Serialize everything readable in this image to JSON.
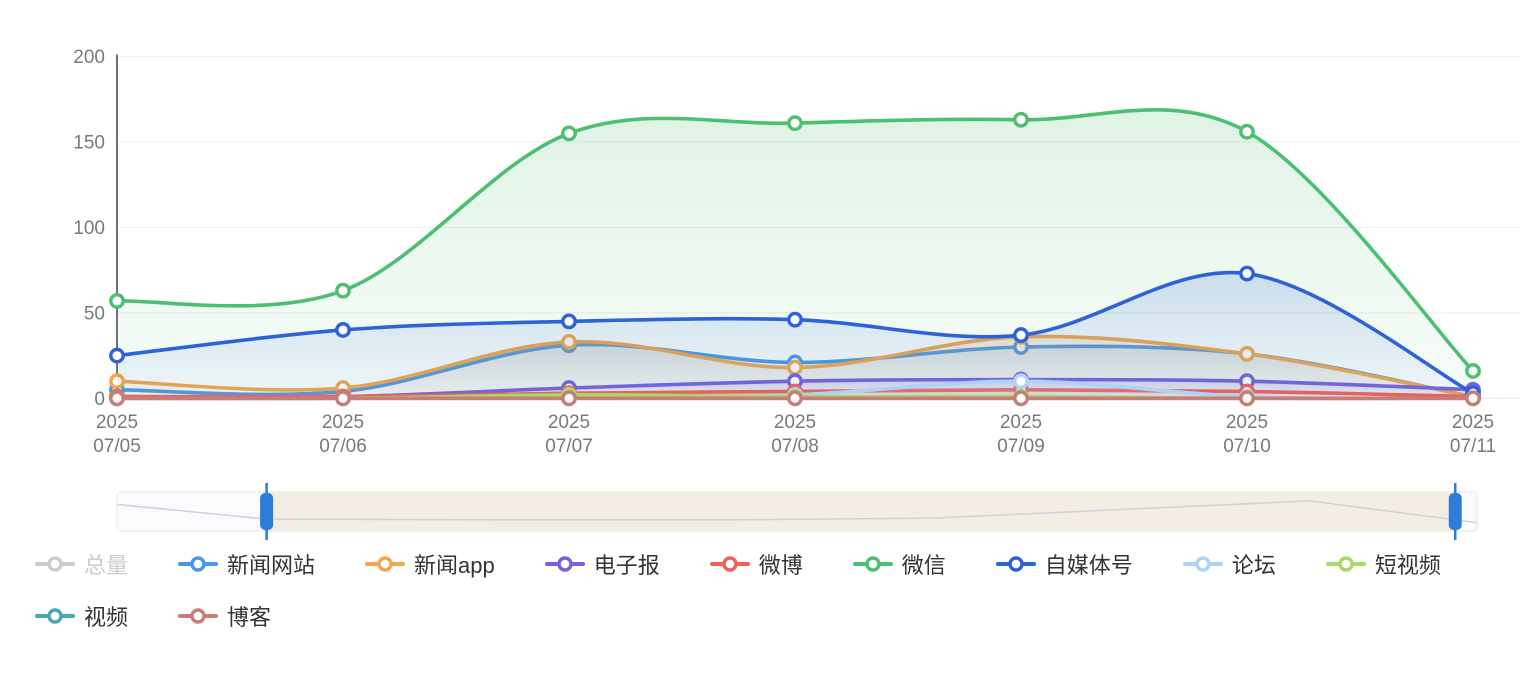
{
  "chart_data": {
    "type": "line",
    "title": "",
    "x_axis": {
      "year_line": "2025",
      "dates": [
        "07/05",
        "07/06",
        "07/07",
        "07/08",
        "07/09",
        "07/10",
        "07/11"
      ]
    },
    "y_axis": {
      "min": 0,
      "max": 200,
      "ticks": [
        0,
        50,
        100,
        150,
        200
      ]
    },
    "grid": true,
    "legend_position": "bottom-left",
    "series": [
      {
        "name": "总量",
        "color": "#c9c9c9",
        "selected": false,
        "values": []
      },
      {
        "name": "新闻网站",
        "color": "#4a97e8",
        "selected": true,
        "values": [
          5,
          4,
          31,
          21,
          30,
          26,
          1
        ]
      },
      {
        "name": "新闻app",
        "color": "#f6a54c",
        "selected": true,
        "values": [
          10,
          6,
          33,
          18,
          36,
          26,
          1
        ]
      },
      {
        "name": "电子报",
        "color": "#7a5fe0",
        "selected": true,
        "values": [
          1,
          1,
          6,
          10,
          11,
          10,
          5
        ]
      },
      {
        "name": "微博",
        "color": "#f2605a",
        "selected": true,
        "values": [
          1,
          1,
          3,
          4,
          5,
          4,
          1
        ]
      },
      {
        "name": "微信",
        "color": "#4dbf70",
        "selected": true,
        "values": [
          57,
          63,
          155,
          161,
          163,
          156,
          16
        ]
      },
      {
        "name": "自媒体号",
        "color": "#2d63d8",
        "selected": true,
        "values": [
          25,
          40,
          45,
          46,
          37,
          73,
          3
        ]
      },
      {
        "name": "论坛",
        "color": "#aed2f6",
        "selected": true,
        "values": [
          0,
          0,
          1,
          2,
          10,
          1,
          0
        ]
      },
      {
        "name": "短视频",
        "color": "#a6d966",
        "selected": true,
        "values": [
          0,
          0,
          2,
          1,
          1,
          0,
          0
        ]
      },
      {
        "name": "视频",
        "color": "#4ba7b0",
        "selected": true,
        "values": [
          0,
          0,
          0,
          0,
          0,
          0,
          0
        ]
      },
      {
        "name": "博客",
        "color": "#c97d78",
        "selected": true,
        "values": [
          0,
          0,
          0,
          0,
          0,
          0,
          0
        ]
      }
    ],
    "slider": {
      "range_percent": [
        11,
        98.4
      ],
      "handle_color": "#2e7cd8",
      "selected_fill": "#f4ede4",
      "track_fill": "#fafbfd",
      "shadow_profile": [
        [
          0,
          0.7
        ],
        [
          0.11,
          0.28
        ],
        [
          0.3,
          0.26
        ],
        [
          0.45,
          0.26
        ],
        [
          0.6,
          0.31
        ],
        [
          0.877,
          0.8
        ],
        [
          1,
          0.18
        ]
      ]
    },
    "colors": {
      "grid_line": "#ebeef2",
      "axis_line": "#6e7079",
      "axis_label": "#757a80",
      "shadow_line": "#ccd1d8"
    }
  }
}
